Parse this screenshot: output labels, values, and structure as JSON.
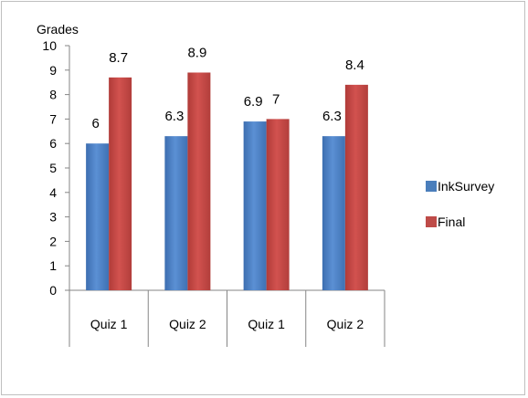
{
  "chart_data": {
    "type": "bar",
    "ylabel": "Grades",
    "ylim": [
      0,
      10
    ],
    "yticks": [
      0,
      1,
      2,
      3,
      4,
      5,
      6,
      7,
      8,
      9,
      10
    ],
    "categories": [
      "Quiz 1",
      "Quiz 2",
      "Quiz 1",
      "Quiz 2"
    ],
    "series": [
      {
        "name": "InkSurvey",
        "values": [
          6,
          6.3,
          6.9,
          6.3
        ],
        "labels": [
          "6",
          "6.3",
          "6.9",
          "6.3"
        ],
        "color": "#4a7ebb"
      },
      {
        "name": "Final",
        "values": [
          8.7,
          8.9,
          7,
          8.4
        ],
        "labels": [
          "8.7",
          "8.9",
          "7",
          "8.4"
        ],
        "color": "#be4b48"
      }
    ],
    "legend_position": "right",
    "grid": false
  }
}
